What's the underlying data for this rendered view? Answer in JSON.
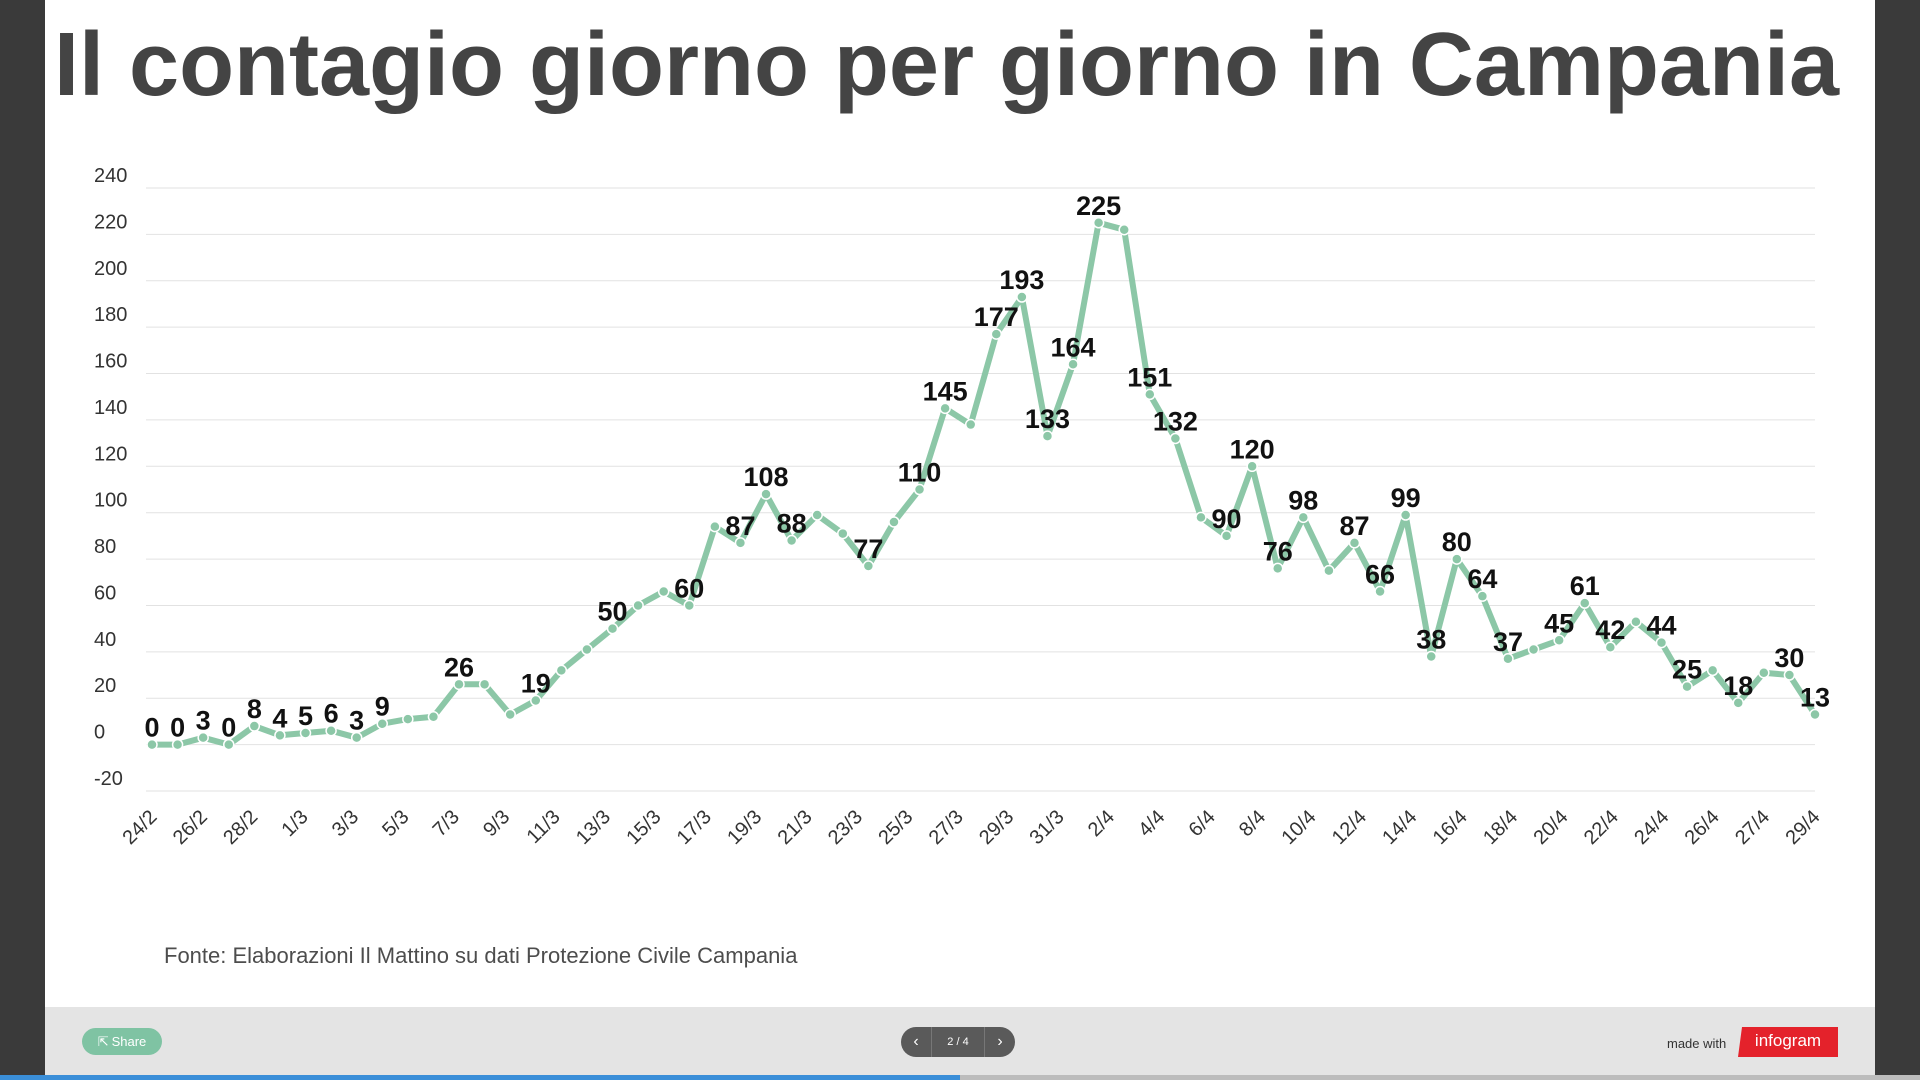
{
  "title": "Il contagio giorno per giorno in Campania",
  "source": "Fonte: Elaborazioni Il Mattino su dati Protezione Civile Campania",
  "footer": {
    "share_label": "Share",
    "pager_counter": "2 / 4",
    "made_with": "made with",
    "brand": "infogram",
    "progress": 0.5
  },
  "colors": {
    "line": "#8cc7a7",
    "title": "#444444",
    "grid": "#e2e2e2",
    "label": "#111111"
  },
  "chart_data": {
    "type": "line",
    "title": "Il contagio giorno per giorno in Campania",
    "xlabel": "",
    "ylabel": "",
    "ylim": [
      -20,
      240
    ],
    "yticks": [
      -20,
      0,
      20,
      40,
      60,
      80,
      100,
      120,
      140,
      160,
      180,
      200,
      220,
      240
    ],
    "grid": true,
    "legend": "none",
    "xtick_labels": [
      "24/2",
      "26/2",
      "28/2",
      "1/3",
      "3/3",
      "5/3",
      "7/3",
      "9/3",
      "11/3",
      "13/3",
      "15/3",
      "17/3",
      "19/3",
      "21/3",
      "23/3",
      "25/3",
      "27/3",
      "29/3",
      "31/3",
      "2/4",
      "4/4",
      "6/4",
      "8/4",
      "10/4",
      "12/4",
      "14/4",
      "16/4",
      "18/4",
      "20/4",
      "22/4",
      "24/4",
      "26/4",
      "27/4",
      "29/4"
    ],
    "series": [
      {
        "values": [
          0,
          0,
          3,
          0,
          8,
          4,
          5,
          6,
          3,
          9,
          11,
          12,
          26,
          26,
          13,
          19,
          32,
          41,
          50,
          60,
          66,
          60,
          94,
          87,
          108,
          88,
          99,
          91,
          77,
          96,
          110,
          145,
          138,
          177,
          193,
          133,
          164,
          225,
          222,
          151,
          132,
          98,
          90,
          120,
          76,
          98,
          75,
          87,
          66,
          99,
          38,
          80,
          64,
          37,
          41,
          45,
          61,
          42,
          53,
          44,
          25,
          32,
          18,
          31,
          30,
          13
        ],
        "labels": [
          "0",
          "0",
          "3",
          "0",
          "8",
          "4",
          "5",
          "6",
          "3",
          "9",
          "",
          "",
          "26",
          "",
          "",
          "19",
          "",
          "",
          "50",
          "",
          "",
          "60",
          "",
          "87",
          "108",
          "88",
          "",
          "",
          "77",
          "",
          "110",
          "145",
          "",
          "177",
          "193",
          "133",
          "164",
          "225",
          "",
          "151",
          "132",
          "",
          "90",
          "120",
          "76",
          "98",
          "",
          "87",
          "66",
          "99",
          "38",
          "80",
          "64",
          "37",
          "",
          "45",
          "61",
          "42",
          "",
          "44",
          "25",
          "",
          "18",
          "",
          "30",
          "13"
        ]
      }
    ]
  }
}
